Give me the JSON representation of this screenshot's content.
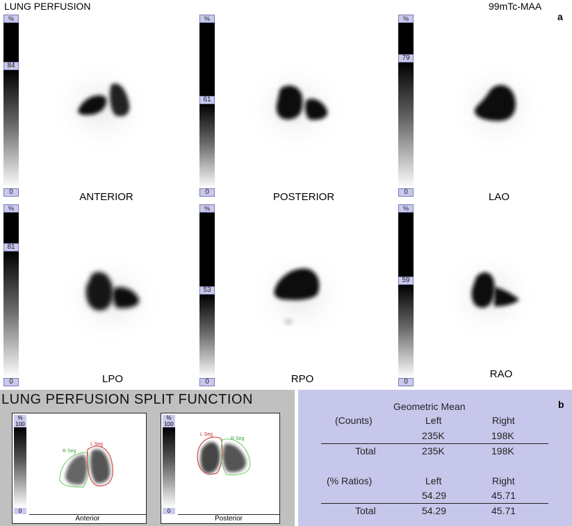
{
  "header": {
    "title": "LUNG PERFUSION",
    "tracer": "99mTc-MAA",
    "panel_a": "a",
    "panel_b": "b"
  },
  "views": [
    {
      "label": "ANTERIOR",
      "top_pct": "%",
      "level": "84",
      "bottom": "0"
    },
    {
      "label": "POSTERIOR",
      "top_pct": "%",
      "level": "61",
      "bottom": "0"
    },
    {
      "label": "LAO",
      "top_pct": "%",
      "level": "79",
      "bottom": "0"
    },
    {
      "label": "LPO",
      "top_pct": "%",
      "level": "81",
      "bottom": "0"
    },
    {
      "label": "RPO",
      "top_pct": "%",
      "level": "53",
      "bottom": "0"
    },
    {
      "label": "RAO",
      "top_pct": "%",
      "level": "59",
      "bottom": "0"
    }
  ],
  "split": {
    "title": "LUNG PERFUSION SPLIT FUNCTION",
    "panels": [
      {
        "label": "Anterior",
        "top_pct": "%",
        "max": "100",
        "min": "0",
        "roi_left": "L Seg",
        "roi_right": "R Seg"
      },
      {
        "label": "Posterior",
        "top_pct": "%",
        "max": "100",
        "min": "0",
        "roi_left": "L Seg",
        "roi_right": "R Seg"
      }
    ]
  },
  "results": {
    "heading": "Geometric Mean",
    "counts_label": "(Counts)",
    "col_left": "Left",
    "col_right": "Right",
    "counts": {
      "left": "235K",
      "right": "198K"
    },
    "counts_total": {
      "label": "Total",
      "left": "235K",
      "right": "198K"
    },
    "ratios_label": "(% Ratios)",
    "ratios": {
      "left": "54.29",
      "right": "45.71"
    },
    "ratios_total": {
      "label": "Total",
      "left": "54.29",
      "right": "45.71"
    }
  },
  "colors": {
    "roi_green": "#7fd27f",
    "roi_red": "#d14a4a",
    "result_bg": "#c7c7ec",
    "split_bg": "#c0c0c0"
  }
}
